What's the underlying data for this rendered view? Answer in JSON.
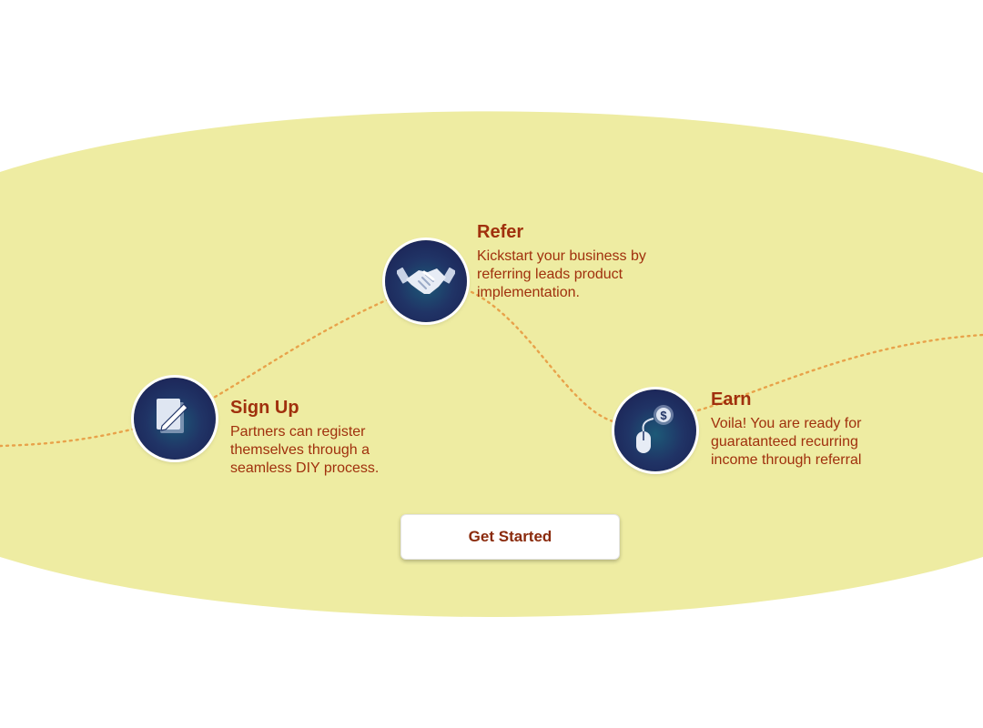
{
  "colors": {
    "band": "#eeeca2",
    "accent_text": "#a0300d",
    "path_dots": "#e8a24a",
    "icon_bg": "#1f2d63"
  },
  "steps": [
    {
      "title": "Sign Up",
      "description": "Partners can register themselves through a seamless DIY process.",
      "icon": "document-pen-icon"
    },
    {
      "title": "Refer",
      "description": "Kickstart your business by referring leads product implementation.",
      "icon": "handshake-icon"
    },
    {
      "title": "Earn",
      "description": "Voila! You are ready for guaratanteed recurring income through referral",
      "icon": "mouse-dollar-icon"
    }
  ],
  "cta": {
    "label": "Get Started"
  }
}
